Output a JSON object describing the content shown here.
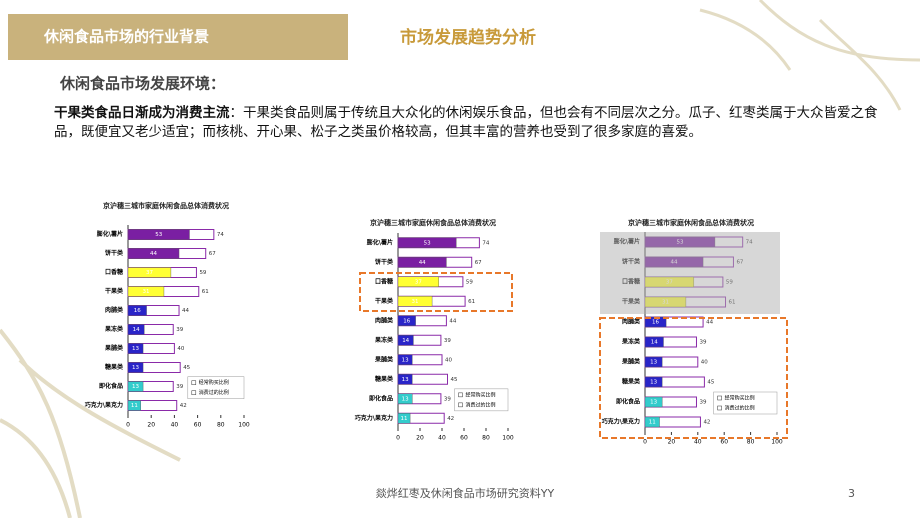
{
  "header": {
    "section": "休闲食品市场的行业背景",
    "title": "市场发展趋势分析"
  },
  "subtitle": "休闲食品市场发展环境：",
  "paragraph": {
    "lead": "干果类食品日渐成为消费主流",
    "text": "：干果类食品则属于传统且大众化的休闲娱乐食品，但也会有不同层次之分。瓜子、红枣类属于大众皆爱之食品，既便宜又老少适宜；而核桃、开心果、松子之类虽价格较高，但其丰富的营养也受到了很多家庭的喜爱。"
  },
  "footer": {
    "text": "燚烨红枣及休闲食品市场研究资料YY",
    "page": "3"
  },
  "chart_data": [
    {
      "type": "bar",
      "orientation": "horizontal",
      "title": "京沪穗三城市家庭休闲食品总体消费状况",
      "categories": [
        "膨化\\薯片",
        "饼干类",
        "口香糖",
        "干果类",
        "肉脯类",
        "果冻类",
        "果脯类",
        "糖果类",
        "即化食品",
        "巧克力\\果克力"
      ],
      "series": [
        {
          "name": "经常购买比例",
          "colors": [
            "#7a1fa2",
            "#7a1fa2",
            "#ffff33",
            "#ffff33",
            "#2a24c8",
            "#2a24c8",
            "#2a24c8",
            "#2a24c8",
            "#33cccc",
            "#33cccc"
          ],
          "values": [
            53,
            44,
            37,
            31,
            16,
            14,
            13,
            13,
            13,
            11
          ]
        },
        {
          "name": "消费过的比例",
          "color": "#8a2aa8",
          "values": [
            74,
            67,
            59,
            61,
            44,
            39,
            40,
            45,
            39,
            42
          ]
        }
      ],
      "xlim": [
        0,
        100
      ],
      "xticks": [
        0,
        20,
        40,
        60,
        80,
        100
      ]
    },
    {
      "type": "bar",
      "orientation": "horizontal",
      "title": "京沪穗三城市家庭休闲食品总体消费状况",
      "categories": [
        "膨化\\薯片",
        "饼干类",
        "口香糖",
        "干果类",
        "肉脯类",
        "果冻类",
        "果脯类",
        "糖果类",
        "即化食品",
        "巧克力\\果克力"
      ],
      "series": [
        {
          "name": "经常购买比例",
          "colors": [
            "#7a1fa2",
            "#7a1fa2",
            "#ffff33",
            "#ffff33",
            "#2a24c8",
            "#2a24c8",
            "#2a24c8",
            "#2a24c8",
            "#33cccc",
            "#33cccc"
          ],
          "values": [
            53,
            44,
            37,
            31,
            16,
            14,
            13,
            13,
            13,
            11
          ]
        },
        {
          "name": "消费过的比例",
          "color": "#8a2aa8",
          "values": [
            74,
            67,
            59,
            61,
            44,
            39,
            40,
            45,
            39,
            42
          ]
        }
      ],
      "xlim": [
        0,
        100
      ],
      "xticks": [
        0,
        20,
        40,
        60,
        80,
        100
      ]
    },
    {
      "type": "bar",
      "orientation": "horizontal",
      "title": "京沪穗三城市家庭休闲食品总体消费状况",
      "categories": [
        "膨化\\薯片",
        "饼干类",
        "口香糖",
        "干果类",
        "肉脯类",
        "果冻类",
        "果脯类",
        "糖果类",
        "即化食品",
        "巧克力\\果克力"
      ],
      "series": [
        {
          "name": "经常购买比例",
          "colors": [
            "#7a1fa2",
            "#7a1fa2",
            "#ffff33",
            "#ffff33",
            "#2a24c8",
            "#2a24c8",
            "#2a24c8",
            "#2a24c8",
            "#33cccc",
            "#33cccc"
          ],
          "values": [
            53,
            44,
            37,
            31,
            16,
            14,
            13,
            13,
            13,
            11
          ]
        },
        {
          "name": "消费过的比例",
          "color": "#8a2aa8",
          "values": [
            74,
            67,
            59,
            61,
            44,
            39,
            40,
            45,
            39,
            42
          ]
        }
      ],
      "xlim": [
        0,
        100
      ],
      "xticks": [
        0,
        20,
        40,
        60,
        80,
        100
      ]
    }
  ]
}
